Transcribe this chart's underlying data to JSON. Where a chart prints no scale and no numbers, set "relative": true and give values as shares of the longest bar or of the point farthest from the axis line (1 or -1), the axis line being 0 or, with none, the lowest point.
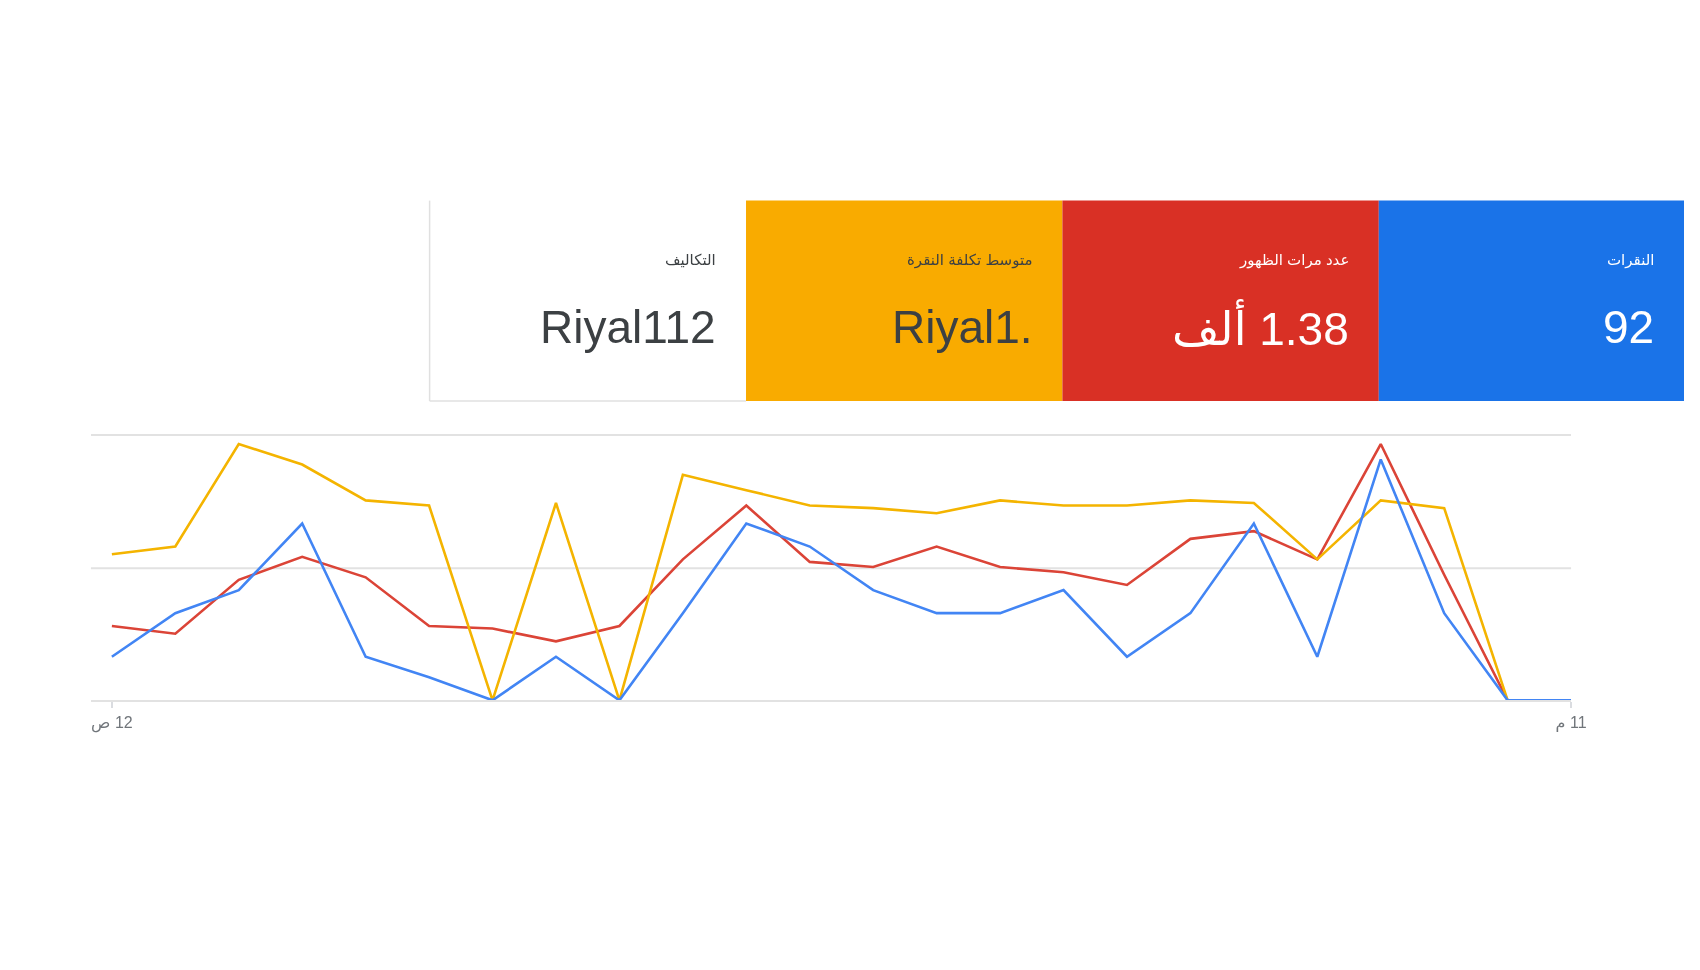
{
  "chart_data": [
    {
      "type": "other",
      "categories": [
        "التكاليف",
        "متوسط تكلفة النقرة",
        "عدد مرات الظهور",
        "النقرات"
      ],
      "value_labels": [
        "Riyal112",
        "Riyal1.",
        "1.38 ألف",
        "92"
      ],
      "colors": [
        "#ffffff",
        "#f9ab00",
        "#d93025",
        "#1a73e8"
      ]
    },
    {
      "type": "line",
      "relative": true,
      "categories": [
        "12 ص",
        null,
        null,
        null,
        null,
        null,
        null,
        null,
        null,
        null,
        null,
        null,
        null,
        null,
        null,
        null,
        null,
        null,
        null,
        null,
        null,
        null,
        null,
        "11 م"
      ],
      "ref_lines": [
        {
          "axis": "y",
          "value": 0.515,
          "color": "#e2e2e2"
        }
      ],
      "series": [
        {
          "color": "#db4437",
          "values": [
            0.29,
            0.26,
            0.47,
            0.56,
            0.48,
            0.29,
            0.28,
            0.23,
            0.29,
            0.55,
            0.76,
            0.54,
            0.52,
            0.6,
            0.52,
            0.5,
            0.45,
            0.63,
            0.66,
            0.55,
            1,
            0.49,
            0,
            0
          ]
        },
        {
          "color": "#f4b400",
          "values": [
            0.57,
            0.6,
            1,
            0.92,
            0.78,
            0.76,
            0,
            0.77,
            0,
            0.88,
            0.82,
            0.76,
            0.75,
            0.73,
            0.78,
            0.76,
            0.76,
            0.78,
            0.77,
            0.55,
            0.78,
            0.75,
            0,
            0
          ]
        },
        {
          "color": "#4285f4",
          "values": [
            0.17,
            0.34,
            0.43,
            0.69,
            0.17,
            0.09,
            0,
            0.17,
            0,
            0.34,
            0.69,
            0.6,
            0.43,
            0.34,
            0.34,
            0.43,
            0.17,
            0.34,
            0.69,
            0.17,
            0.94,
            0.34,
            0,
            0
          ]
        }
      ]
    }
  ]
}
